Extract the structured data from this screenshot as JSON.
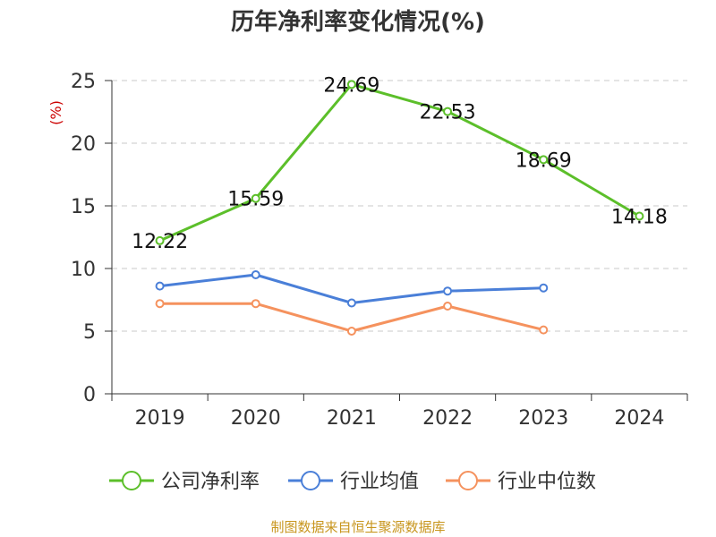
{
  "chart_data": {
    "type": "line",
    "title": "历年净利率变化情况(%)",
    "ylabel": "(%)",
    "xlabel": "",
    "categories": [
      "2019",
      "2020",
      "2021",
      "2022",
      "2023",
      "2024"
    ],
    "ylim": [
      0,
      25
    ],
    "yticks": [
      0,
      5,
      10,
      15,
      20,
      25
    ],
    "grid": true,
    "legend_position": "bottom",
    "series": [
      {
        "name": "公司净利率",
        "color": "#5cbf2a",
        "labels": true,
        "values": [
          12.22,
          15.59,
          24.69,
          22.53,
          18.69,
          14.18
        ]
      },
      {
        "name": "行业均值",
        "color": "#4a7fd8",
        "labels": false,
        "values": [
          8.6,
          9.5,
          7.25,
          8.2,
          8.45,
          null
        ]
      },
      {
        "name": "行业中位数",
        "color": "#f5925e",
        "labels": false,
        "values": [
          7.2,
          7.2,
          5.0,
          7.0,
          5.1,
          null
        ]
      }
    ]
  },
  "source_text": "制图数据来自恒生聚源数据库"
}
